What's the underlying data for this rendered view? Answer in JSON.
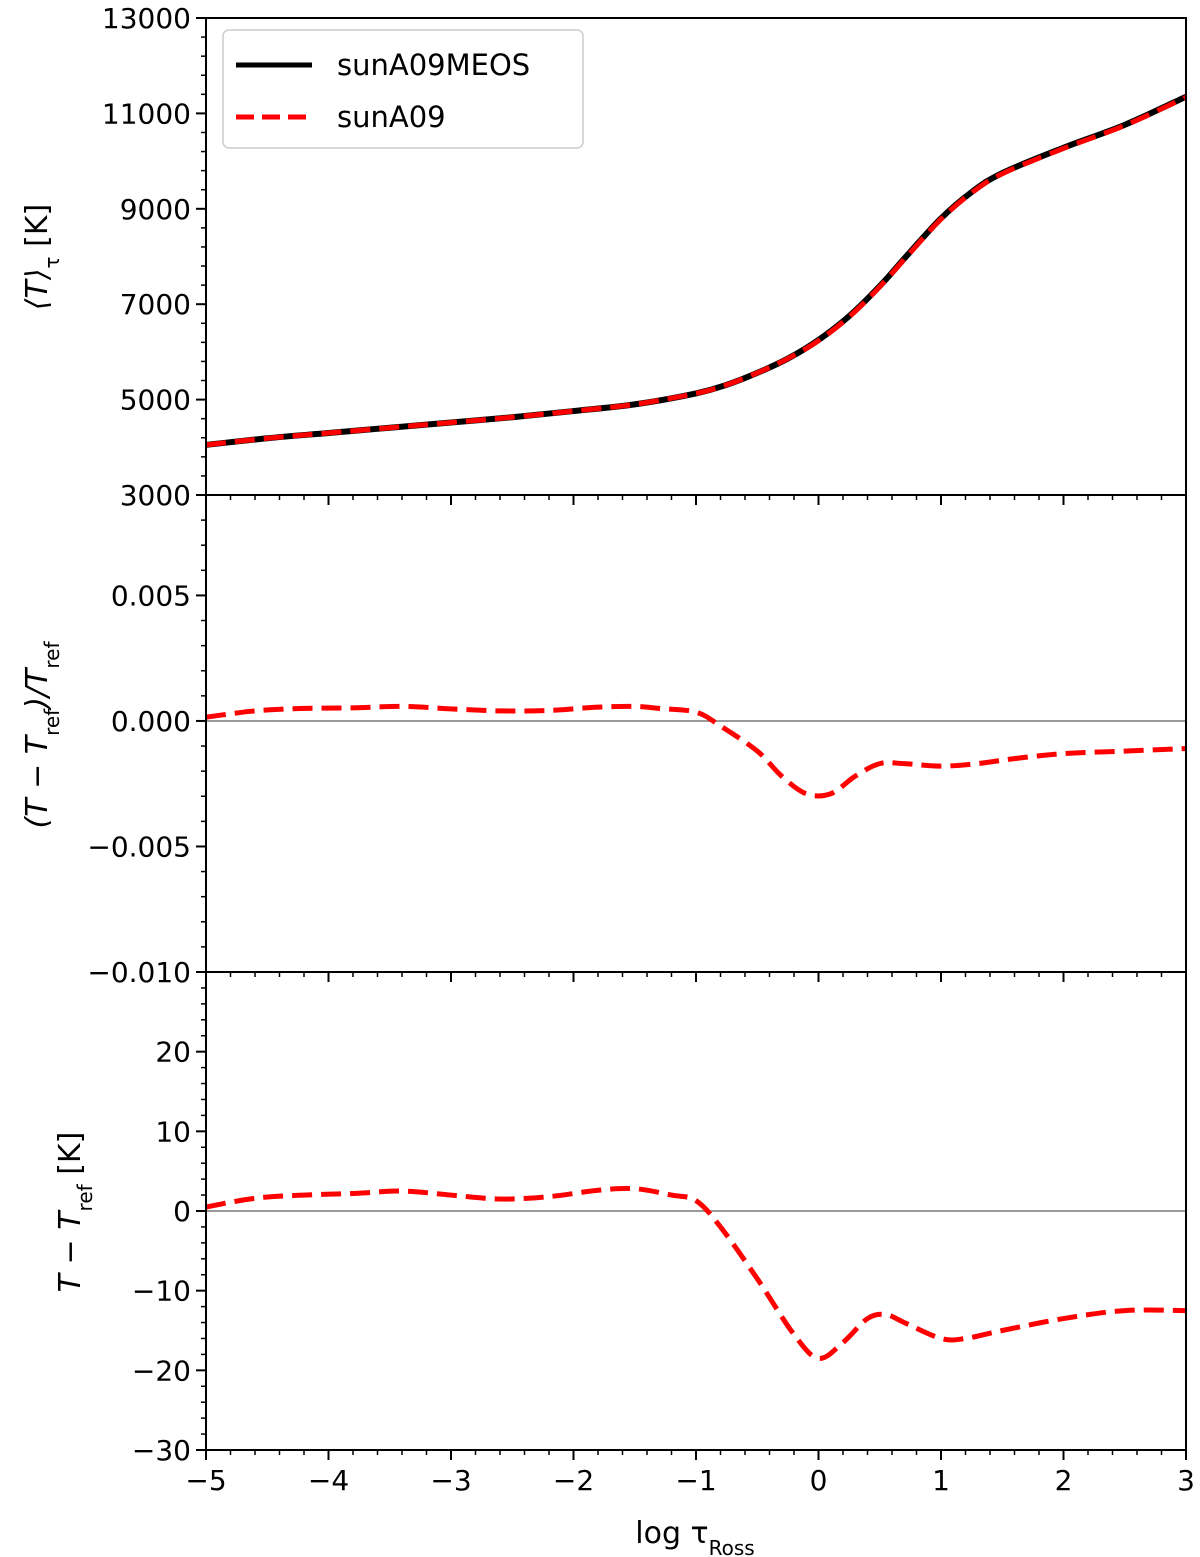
{
  "xlabel": "log τ",
  "xlabel_sub": "Ross",
  "x_ticks": [
    "−5",
    "−4",
    "−3",
    "−2",
    "−1",
    "0",
    "1",
    "2",
    "3"
  ],
  "colors": {
    "reference": "#000000",
    "model": "#ff0000",
    "zero_line": "#999999",
    "axes": "#000000"
  },
  "legend": {
    "position": "upper-left",
    "items": [
      {
        "label": "sunA09MEOS",
        "style": "solid",
        "color": "#000000"
      },
      {
        "label": "sunA09",
        "style": "dashed",
        "color": "#ff0000"
      }
    ]
  },
  "panels": [
    {
      "ylabel_main": "⟨T⟩",
      "ylabel_sub": "τ",
      "ylabel_unit": "  [K]",
      "y_ticks": [
        "3000",
        "5000",
        "7000",
        "9000",
        "11000",
        "13000"
      ]
    },
    {
      "ylabel_main": "(T − T",
      "ylabel_sub": "ref",
      "ylabel_mid": ")/T",
      "ylabel_sub2": "ref",
      "y_ticks": [
        "−0.010",
        "−0.005",
        "0.000",
        "0.005"
      ]
    },
    {
      "ylabel_main": "T − T",
      "ylabel_sub": "ref",
      "ylabel_unit": "  [K]",
      "y_ticks": [
        "−30",
        "−20",
        "−10",
        "0",
        "10",
        "20"
      ]
    }
  ],
  "chart_data": [
    {
      "type": "line",
      "xlabel": "log τ_Ross",
      "ylabel": "⟨T⟩_τ [K]",
      "xlim": [
        -5,
        3
      ],
      "ylim": [
        3000,
        13000
      ],
      "legend": "upper-left",
      "series": [
        {
          "name": "sunA09MEOS",
          "style": "solid",
          "color": "#000000",
          "x": [
            -5,
            -4.5,
            -4,
            -3.5,
            -3,
            -2.5,
            -2,
            -1.5,
            -1,
            -0.75,
            -0.5,
            -0.25,
            0,
            0.25,
            0.5,
            0.75,
            1,
            1.25,
            1.5,
            2,
            2.5,
            3
          ],
          "y": [
            4050,
            4190,
            4300,
            4410,
            4520,
            4630,
            4760,
            4900,
            5130,
            5310,
            5560,
            5860,
            6250,
            6750,
            7380,
            8100,
            8800,
            9350,
            9750,
            10280,
            10760,
            11350
          ]
        },
        {
          "name": "sunA09",
          "style": "dashed",
          "color": "#ff0000",
          "x": [
            -5,
            -4.5,
            -4,
            -3.5,
            -3,
            -2.5,
            -2,
            -1.5,
            -1,
            -0.75,
            -0.5,
            -0.25,
            0,
            0.25,
            0.5,
            0.75,
            1,
            1.25,
            1.5,
            2,
            2.5,
            3
          ],
          "y": [
            4050,
            4190,
            4300,
            4410,
            4520,
            4630,
            4760,
            4900,
            5130,
            5310,
            5560,
            5860,
            6235,
            6735,
            7365,
            8085,
            8785,
            9335,
            9735,
            10265,
            10748,
            11338
          ]
        }
      ]
    },
    {
      "type": "line",
      "xlabel": "log τ_Ross",
      "ylabel": "(T − T_ref)/T_ref",
      "xlim": [
        -5,
        3
      ],
      "ylim": [
        -0.01,
        0.009
      ],
      "reference_line": 0,
      "series": [
        {
          "name": "sunA09",
          "style": "dashed",
          "color": "#ff0000",
          "x": [
            -5,
            -4.6,
            -4.2,
            -3.8,
            -3.4,
            -3.0,
            -2.6,
            -2.2,
            -1.8,
            -1.5,
            -1.3,
            -1.0,
            -0.8,
            -0.5,
            -0.3,
            -0.1,
            0.1,
            0.3,
            0.5,
            0.7,
            1.0,
            1.3,
            1.6,
            2.0,
            2.5,
            3.0
          ],
          "y": [
            0.00015,
            0.0004,
            0.0005,
            0.00052,
            0.00058,
            0.00048,
            0.0004,
            0.00042,
            0.00055,
            0.00058,
            0.0005,
            0.00035,
            -0.0002,
            -0.0012,
            -0.0022,
            -0.0029,
            -0.0029,
            -0.0022,
            -0.0017,
            -0.0017,
            -0.0018,
            -0.0017,
            -0.0015,
            -0.0013,
            -0.0012,
            -0.0011
          ]
        }
      ]
    },
    {
      "type": "line",
      "xlabel": "log τ_Ross",
      "ylabel": "T − T_ref [K]",
      "xlim": [
        -5,
        3
      ],
      "ylim": [
        -30,
        30
      ],
      "reference_line": 0,
      "series": [
        {
          "name": "sunA09",
          "style": "dashed",
          "color": "#ff0000",
          "x": [
            -5,
            -4.6,
            -4.2,
            -3.8,
            -3.4,
            -3.0,
            -2.6,
            -2.2,
            -1.8,
            -1.5,
            -1.2,
            -1.0,
            -0.8,
            -0.5,
            -0.2,
            0,
            0.2,
            0.4,
            0.55,
            0.7,
            1.0,
            1.2,
            1.5,
            2.0,
            2.5,
            3.0
          ],
          "y": [
            0.5,
            1.6,
            2.0,
            2.2,
            2.5,
            2.0,
            1.5,
            1.8,
            2.6,
            2.8,
            2.0,
            1.3,
            -2.0,
            -8.5,
            -15.5,
            -18.5,
            -16.5,
            -13.5,
            -13.0,
            -14.0,
            -16.0,
            -16.0,
            -15.0,
            -13.5,
            -12.5,
            -12.5
          ]
        }
      ]
    }
  ]
}
